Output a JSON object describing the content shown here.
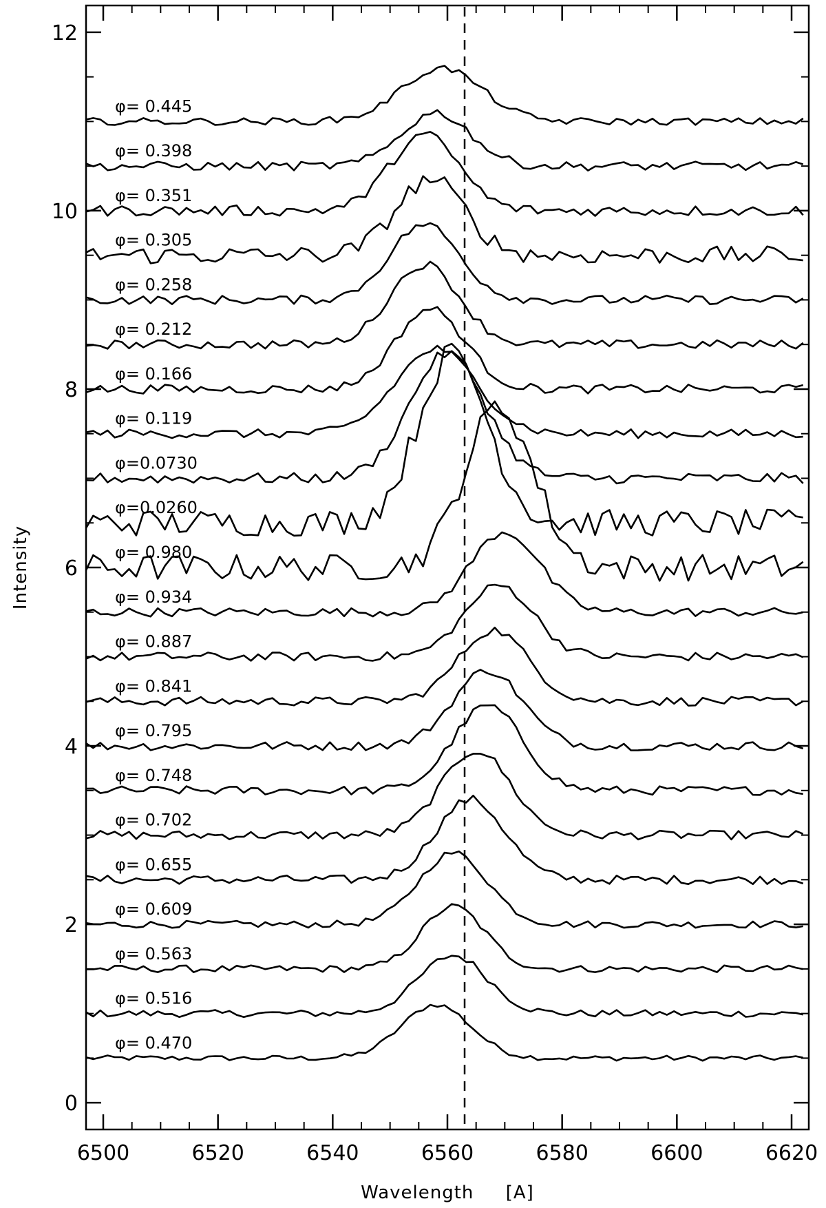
{
  "chart_data": {
    "type": "line",
    "xlabel": "Wavelength     [A]",
    "ylabel": "Intensity",
    "xlim": [
      6497,
      6623
    ],
    "ylim": [
      -0.3,
      12.3
    ],
    "x_ticks": [
      6500,
      6520,
      6540,
      6560,
      6580,
      6600,
      6620
    ],
    "y_ticks": [
      0,
      2,
      4,
      6,
      8,
      10,
      12
    ],
    "reference_line_x": 6563,
    "line_color": "#000000",
    "series": [
      {
        "name": "φ= 0.470",
        "offset": 0.5,
        "noise": 0.03,
        "peaks": [
          {
            "center": 6558,
            "amp": 0.6,
            "width": 6
          }
        ]
      },
      {
        "name": "φ= 0.516",
        "offset": 1.0,
        "noise": 0.04,
        "peaks": [
          {
            "center": 6561,
            "amp": 0.65,
            "width": 6
          }
        ]
      },
      {
        "name": "φ= 0.563",
        "offset": 1.5,
        "noise": 0.04,
        "peaks": [
          {
            "center": 6561,
            "amp": 0.7,
            "width": 5.5
          }
        ]
      },
      {
        "name": "φ= 0.609",
        "offset": 2.0,
        "noise": 0.04,
        "peaks": [
          {
            "center": 6561,
            "amp": 0.8,
            "width": 6
          }
        ]
      },
      {
        "name": "φ= 0.655",
        "offset": 2.5,
        "noise": 0.05,
        "peaks": [
          {
            "center": 6564,
            "amp": 0.9,
            "width": 6
          }
        ]
      },
      {
        "name": "φ= 0.702",
        "offset": 3.0,
        "noise": 0.05,
        "peaks": [
          {
            "center": 6565,
            "amp": 0.95,
            "width": 6
          }
        ]
      },
      {
        "name": "φ= 0.748",
        "offset": 3.5,
        "noise": 0.05,
        "peaks": [
          {
            "center": 6567,
            "amp": 0.95,
            "width": 6
          }
        ]
      },
      {
        "name": "φ= 0.795",
        "offset": 4.0,
        "noise": 0.05,
        "peaks": [
          {
            "center": 6567,
            "amp": 0.85,
            "width": 6
          }
        ]
      },
      {
        "name": "φ= 0.841",
        "offset": 4.5,
        "noise": 0.05,
        "peaks": [
          {
            "center": 6568,
            "amp": 0.8,
            "width": 6
          }
        ]
      },
      {
        "name": "φ= 0.887",
        "offset": 5.0,
        "noise": 0.05,
        "peaks": [
          {
            "center": 6569,
            "amp": 0.8,
            "width": 6
          }
        ]
      },
      {
        "name": "φ= 0.934",
        "offset": 5.5,
        "noise": 0.05,
        "peaks": [
          {
            "center": 6570,
            "amp": 0.9,
            "width": 6
          }
        ]
      },
      {
        "name": "φ= 0.980",
        "offset": 6.0,
        "noise": 0.15,
        "peaks": [
          {
            "center": 6569,
            "amp": 1.8,
            "width": 6
          }
        ]
      },
      {
        "name": "φ=0.0260",
        "offset": 6.5,
        "noise": 0.15,
        "peaks": [
          {
            "center": 6561,
            "amp": 1.9,
            "width": 6
          }
        ]
      },
      {
        "name": "φ=0.0730",
        "offset": 7.0,
        "noise": 0.06,
        "peaks": [
          {
            "center": 6560,
            "amp": 1.4,
            "width": 6.5
          }
        ]
      },
      {
        "name": "φ= 0.119",
        "offset": 7.5,
        "noise": 0.05,
        "peaks": [
          {
            "center": 6558,
            "amp": 0.95,
            "width": 7
          }
        ]
      },
      {
        "name": "φ= 0.166",
        "offset": 8.0,
        "noise": 0.05,
        "peaks": [
          {
            "center": 6557,
            "amp": 0.9,
            "width": 6
          }
        ]
      },
      {
        "name": "φ= 0.212",
        "offset": 8.5,
        "noise": 0.05,
        "peaks": [
          {
            "center": 6556,
            "amp": 0.9,
            "width": 6
          }
        ]
      },
      {
        "name": "φ= 0.258",
        "offset": 9.0,
        "noise": 0.05,
        "peaks": [
          {
            "center": 6556,
            "amp": 0.85,
            "width": 6
          }
        ]
      },
      {
        "name": "φ= 0.305",
        "offset": 9.5,
        "noise": 0.1,
        "peaks": [
          {
            "center": 6557,
            "amp": 0.85,
            "width": 6
          }
        ]
      },
      {
        "name": "φ= 0.351",
        "offset": 10.0,
        "noise": 0.06,
        "peaks": [
          {
            "center": 6556,
            "amp": 0.85,
            "width": 6
          }
        ]
      },
      {
        "name": "φ= 0.398",
        "offset": 10.5,
        "noise": 0.05,
        "peaks": [
          {
            "center": 6558,
            "amp": 0.6,
            "width": 6
          }
        ]
      },
      {
        "name": "φ= 0.445",
        "offset": 11.0,
        "noise": 0.04,
        "peaks": [
          {
            "center": 6559,
            "amp": 0.6,
            "width": 7
          }
        ]
      }
    ]
  }
}
